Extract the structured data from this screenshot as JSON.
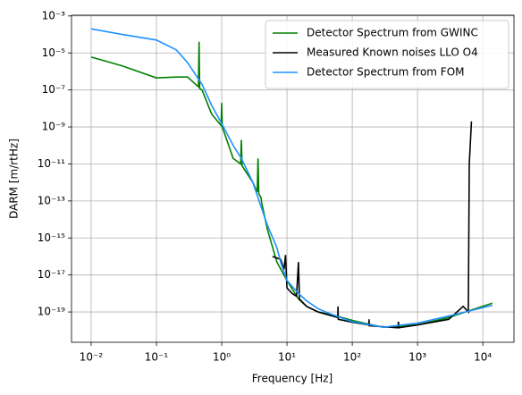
{
  "chart_data": {
    "type": "line",
    "xlabel": "Frequency [Hz]",
    "ylabel": "DARM [m/rtHz]",
    "xscale": "log",
    "yscale": "log",
    "grid": true,
    "legend": "upper right",
    "xlim": [
      0.005,
      30000
    ],
    "ylim": [
      2.3e-21,
      0.0011
    ],
    "xticks": [
      {
        "value": 0.01,
        "label": "10⁻²"
      },
      {
        "value": 0.1,
        "label": "10⁻¹"
      },
      {
        "value": 1,
        "label": "10⁰"
      },
      {
        "value": 10,
        "label": "10¹"
      },
      {
        "value": 100,
        "label": "10²"
      },
      {
        "value": 1000,
        "label": "10³"
      },
      {
        "value": 10000,
        "label": "10⁴"
      }
    ],
    "yticks": [
      {
        "value": 0.001,
        "label": "10⁻³"
      },
      {
        "value": 1e-05,
        "label": "10⁻⁵"
      },
      {
        "value": 1e-07,
        "label": "10⁻⁷"
      },
      {
        "value": 1e-09,
        "label": "10⁻⁹"
      },
      {
        "value": 1e-11,
        "label": "10⁻¹¹"
      },
      {
        "value": 1e-13,
        "label": "10⁻¹³"
      },
      {
        "value": 1e-15,
        "label": "10⁻¹⁵"
      },
      {
        "value": 1e-17,
        "label": "10⁻¹⁷"
      },
      {
        "value": 1e-19,
        "label": "10⁻¹⁹"
      }
    ],
    "series": [
      {
        "name": "Detector Spectrum from GWINC",
        "color": "#008000",
        "x": [
          0.01,
          0.03,
          0.1,
          0.2,
          0.3,
          0.4,
          0.44,
          0.45,
          0.46,
          0.5,
          0.7,
          0.98,
          1.0,
          1.02,
          1.5,
          1.95,
          2.0,
          2.05,
          3.0,
          3.5,
          3.6,
          3.7,
          4.0,
          4.1,
          5,
          7,
          10,
          15,
          20,
          30,
          50,
          100,
          200,
          300,
          1000,
          3000,
          14000
        ],
        "values": [
          6e-06,
          2e-06,
          4.5e-07,
          5e-07,
          5e-07,
          2e-07,
          1.5e-07,
          4e-05,
          1.2e-07,
          1e-07,
          5e-09,
          1.2e-09,
          2e-08,
          1e-09,
          2e-11,
          1e-11,
          2e-10,
          8e-12,
          1e-12,
          3e-13,
          2e-11,
          2.5e-13,
          1.5e-13,
          8e-14,
          3e-15,
          5e-17,
          5e-18,
          5e-19,
          2e-19,
          1e-19,
          7e-20,
          3.5e-20,
          2e-20,
          1.5e-20,
          2e-20,
          5e-20,
          3e-19
        ]
      },
      {
        "name": "Measured Known noises LLO O4",
        "color": "#000000",
        "x": [
          6,
          8,
          9,
          9.5,
          10,
          12,
          14,
          15,
          15.5,
          20,
          30,
          60,
          60.5,
          61,
          100,
          180,
          181,
          182,
          500,
          510,
          520,
          1000,
          3000,
          5000,
          6000,
          6200,
          6700
        ],
        "values": [
          1e-16,
          7e-17,
          2e-17,
          1.2e-16,
          2e-18,
          1e-18,
          7e-19,
          5e-17,
          5e-19,
          2e-19,
          1e-19,
          5e-20,
          2e-19,
          4e-20,
          2.8e-20,
          2e-20,
          4e-20,
          1.8e-20,
          1.4e-20,
          3e-20,
          1.4e-20,
          2e-20,
          4e-20,
          2e-19,
          1e-19,
          1e-11,
          2e-09
        ]
      },
      {
        "name": "Detector Spectrum from FOM",
        "color": "#1e90ff",
        "x": [
          0.01,
          0.03,
          0.1,
          0.2,
          0.3,
          0.5,
          0.7,
          1,
          1.5,
          2,
          3,
          4,
          5,
          7,
          8,
          10,
          15,
          20,
          30,
          50,
          100,
          300,
          1000,
          3000,
          14000
        ],
        "values": [
          0.0002,
          0.0001,
          5e-05,
          1.5e-05,
          3e-06,
          2e-07,
          1.5e-08,
          1.5e-09,
          1e-10,
          2e-11,
          1e-12,
          5e-14,
          5e-15,
          3e-16,
          5e-17,
          5e-18,
          1e-18,
          4e-19,
          1.5e-19,
          7e-20,
          3e-20,
          1.5e-20,
          2.5e-20,
          6e-20,
          2.3e-19
        ]
      }
    ]
  }
}
